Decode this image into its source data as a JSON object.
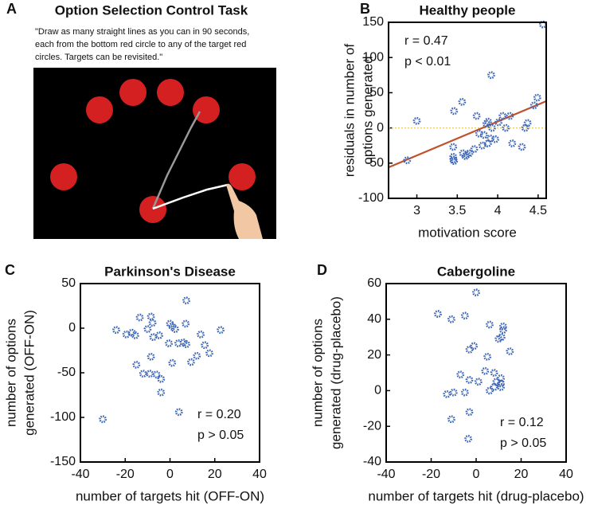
{
  "panel_a": {
    "label": "A",
    "title": "Option Selection Control Task",
    "instruction": [
      "\"Draw as many straight lines as you can in 90 seconds,",
      "each from the bottom red circle to any of the target red",
      "circles. Targets can be revisited.\""
    ]
  },
  "chart_data": [
    {
      "type": "scatter",
      "panel_label": "B",
      "title": "Healthy people",
      "xlabel": [
        "motivation score"
      ],
      "ylabel": [
        "residuals in number of",
        "options generated"
      ],
      "x": [
        2.88,
        3.0,
        3.46,
        3.45,
        3.45,
        3.45,
        3.46,
        3.56,
        3.57,
        3.6,
        3.62,
        3.65,
        3.74,
        3.71,
        3.77,
        3.81,
        3.83,
        3.86,
        3.88,
        3.88,
        3.91,
        3.92,
        3.93,
        3.97,
        4.01,
        4.06,
        4.1,
        4.15,
        4.18,
        4.3,
        4.34,
        4.37,
        4.45,
        4.49,
        4.56
      ],
      "y": [
        -46,
        10,
        24,
        -27,
        -41,
        -45,
        -47,
        37,
        -36,
        -40,
        -38,
        -36,
        17,
        -30,
        -8,
        -25,
        -10,
        6,
        9,
        -22,
        -15,
        75,
        0,
        -16,
        8,
        17,
        0,
        17,
        -22,
        -27,
        0,
        7,
        32,
        43,
        147
      ],
      "xlim": [
        2.65,
        4.6
      ],
      "ylim": [
        -100,
        150
      ],
      "xticks": [
        3,
        3.5,
        4,
        4.5
      ],
      "yticks": [
        -100,
        -50,
        0,
        50,
        100,
        150
      ],
      "marker_color": "#3d66b8",
      "fit_line": {
        "x": [
          2.65,
          4.6
        ],
        "y": [
          -56,
          38
        ]
      },
      "fit_color": "#c1502e",
      "reference_y": 0,
      "reference_color": "#e6c96a",
      "annotations": [
        "r = 0.47",
        "p < 0.01"
      ]
    },
    {
      "type": "scatter",
      "panel_label": "C",
      "title": "Parkinson's Disease",
      "xlabel": [
        "number of targets hit (OFF-ON)"
      ],
      "ylabel": [
        "number of options",
        "generated (OFF-ON)"
      ],
      "x": [
        -30,
        -24,
        -19.5,
        -17,
        -15.5,
        -13.5,
        -15,
        -12,
        -9,
        -8.5,
        -7.8,
        -7.5,
        -10,
        -8.5,
        -6,
        -4.8,
        -4,
        -4,
        -0.5,
        0,
        1,
        1,
        2.3,
        3.7,
        4,
        6,
        7,
        7.3,
        7.3,
        9.4,
        12,
        13.7,
        15.5,
        17.6,
        22.6
      ],
      "y": [
        -102,
        -2,
        -7,
        -5,
        -8,
        12,
        -41,
        -51,
        -51,
        13,
        6,
        -10,
        -1,
        -32,
        -52,
        -8,
        -57,
        -72,
        -17,
        5,
        -39,
        2,
        -1,
        -17,
        -94,
        -16,
        5,
        31,
        -18,
        -38,
        -31,
        -7,
        -19,
        -28,
        -2
      ],
      "xlim": [
        -40,
        40
      ],
      "ylim": [
        -150,
        50
      ],
      "xticks": [
        -40,
        -20,
        0,
        20,
        40
      ],
      "yticks": [
        -150,
        -100,
        -50,
        0,
        50
      ],
      "marker_color": "#3d66b8",
      "annotations": [
        "r = 0.20",
        "p > 0.05"
      ]
    },
    {
      "type": "scatter",
      "panel_label": "D",
      "title": "Cabergoline",
      "xlabel": [
        "number of targets hit (drug-placebo)"
      ],
      "ylabel": [
        "number of options",
        "generated (drug-placebo)"
      ],
      "x": [
        -17,
        -11,
        -5,
        0,
        -7,
        -3,
        -1,
        -13,
        -10,
        -11,
        -5,
        -3,
        -3,
        -3.5,
        1,
        4,
        5,
        6,
        6,
        8,
        9,
        8,
        11,
        11,
        11,
        11.3,
        12,
        12,
        15,
        10
      ],
      "y": [
        43,
        40,
        42,
        55,
        9,
        23,
        25,
        -2,
        -1,
        -16,
        -1,
        6,
        -12,
        -27,
        5,
        11,
        19,
        37,
        0,
        10,
        5,
        2,
        2,
        4,
        7,
        30,
        34,
        36,
        22,
        29
      ],
      "xlim": [
        -40,
        40
      ],
      "ylim": [
        -40,
        60
      ],
      "xticks": [
        -40,
        -20,
        0,
        20,
        40
      ],
      "yticks": [
        -40,
        -20,
        0,
        20,
        40,
        60
      ],
      "marker_color": "#3d66b8",
      "annotations": [
        "r = 0.12",
        "p > 0.05"
      ]
    }
  ]
}
